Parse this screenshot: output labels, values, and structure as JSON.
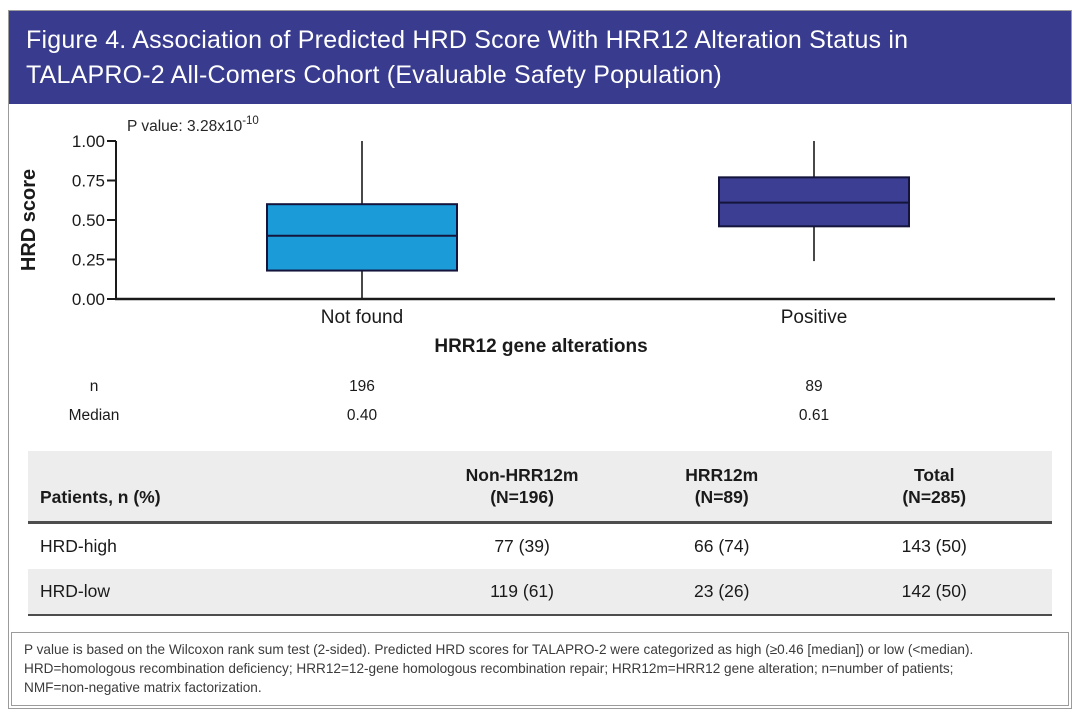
{
  "figure": {
    "title_line1": "Figure 4. Association of Predicted HRD Score With HRR12 Alteration Status in",
    "title_line2": "TALAPRO-2 All-Comers Cohort (Evaluable Safety Population)"
  },
  "colors": {
    "header_bg": "#383B8E",
    "box_not_found": "#1B9CD8",
    "box_positive": "#3B3E92",
    "box_stroke": "#14143C",
    "axis_color": "#1a1a1a",
    "table_stripe": "#EDEDED",
    "dark_rule": "#4D4D4D",
    "card_border": "#9B9B9B"
  },
  "chart_data": {
    "type": "boxplot",
    "title": "",
    "p_value_base": "P value: 3.28x10",
    "p_value_exp": "-10",
    "ylabel": "HRD score",
    "xlabel": "HRR12 gene alterations",
    "ylim": [
      0,
      1
    ],
    "yticks": [
      0,
      0.25,
      0.5,
      0.75,
      1
    ],
    "ytick_labels": [
      "0.00",
      "0.25",
      "0.50",
      "0.75",
      "1.00"
    ],
    "grid": "off",
    "categories": [
      "Not found",
      "Positive"
    ],
    "series": [
      {
        "category": "Not found",
        "n": 196,
        "median": 0.4,
        "q1": 0.18,
        "q3": 0.6,
        "whisker_low": 0.0,
        "whisker_high": 1.0,
        "color": "#1B9CD8"
      },
      {
        "category": "Positive",
        "n": 89,
        "median": 0.61,
        "q1": 0.46,
        "q3": 0.77,
        "whisker_low": 0.24,
        "whisker_high": 1.0,
        "color": "#3B3E92"
      }
    ],
    "annotation_rows": [
      {
        "label": "n",
        "values": [
          "196",
          "89"
        ]
      },
      {
        "label": "Median",
        "values": [
          "0.40",
          "0.61"
        ]
      }
    ]
  },
  "table": {
    "header": {
      "col0": "Patients, n (%)",
      "col1_line1": "Non-HRR12m",
      "col1_line2": "(N=196)",
      "col2_line1": "HRR12m",
      "col2_line2": "(N=89)",
      "col3_line1": "Total",
      "col3_line2": "(N=285)"
    },
    "rows": [
      {
        "label": "HRD-high",
        "values": [
          "77 (39)",
          "66 (74)",
          "143 (50)"
        ]
      },
      {
        "label": "HRD-low",
        "values": [
          "119 (61)",
          "23 (26)",
          "142 (50)"
        ]
      }
    ]
  },
  "footnote": {
    "lines": [
      "P value is based on the Wilcoxon rank sum test (2-sided). Predicted HRD scores for TALAPRO-2 were categorized as high (≥0.46 [median]) or low (<median).",
      "HRD=homologous recombination deficiency; HRR12=12-gene homologous recombination repair; HRR12m=HRR12 gene alteration; n=number of patients;",
      "NMF=non-negative matrix factorization."
    ]
  }
}
